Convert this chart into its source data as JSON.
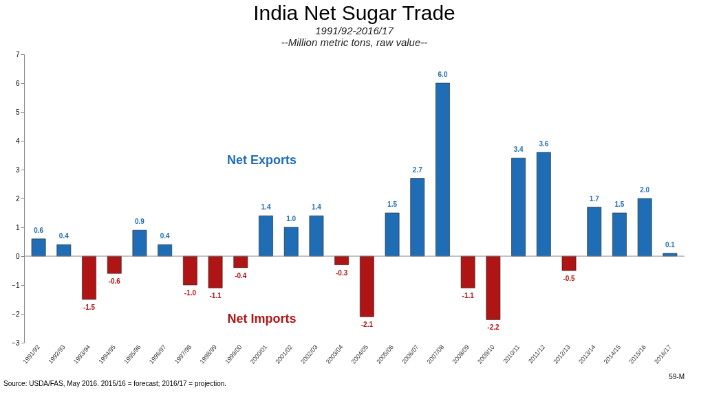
{
  "chart_data": {
    "type": "bar",
    "title": "India Net Sugar Trade",
    "subtitle": [
      "1991/92-2016/17",
      "--Million metric tons, raw value--"
    ],
    "categories": [
      "1991/92",
      "1992/93",
      "1993/94",
      "1994/95",
      "1995/96",
      "1996/97",
      "1997/98",
      "1998/99",
      "1999/00",
      "2000/01",
      "2001/02",
      "2002/03",
      "2003/04",
      "2004/05",
      "2005/06",
      "2006/07",
      "2007/08",
      "2008/09",
      "2009/10",
      "2010/11",
      "2011/12",
      "2012/13",
      "2013/14",
      "2014/15",
      "2015/16",
      "2016/17"
    ],
    "values": [
      0.6,
      0.4,
      -1.5,
      -0.6,
      0.9,
      0.4,
      -1.0,
      -1.1,
      -0.4,
      1.4,
      1.0,
      1.4,
      -0.3,
      -2.1,
      1.5,
      2.7,
      6.0,
      -1.1,
      -2.2,
      3.4,
      3.6,
      -0.5,
      1.7,
      1.5,
      2.0,
      0.1
    ],
    "colors": [
      "#1f6db5",
      "#1f6db5",
      "#b01515",
      "#b01515",
      "#1f6db5",
      "#1f6db5",
      "#b01515",
      "#b01515",
      "#b01515",
      "#1f6db5",
      "#1f6db5",
      "#1f6db5",
      "#b01515",
      "#b01515",
      "#1f6db5",
      "#1f6db5",
      "#1f6db5",
      "#b01515",
      "#b01515",
      "#1f6db5",
      "#1f6db5",
      "#b01515",
      "#1f6db5",
      "#1f6db5",
      "#1f6db5",
      "#1f6db5"
    ],
    "value_labels": [
      "0.6",
      "0.4",
      "-1.5",
      "-0.6",
      "0.9",
      "0.4",
      "-1.0",
      "-1.1",
      "-0.4",
      "1.4",
      "1.0",
      "1.4",
      "-0.3",
      "-2.1",
      "1.5",
      "2.7",
      "6.0",
      "-1.1",
      "-2.2",
      "3.4",
      "3.6",
      "-0.5",
      "1.7",
      "1.5",
      "2.0",
      "0.1"
    ],
    "ylim": [
      -3,
      7
    ],
    "yticks": [
      -3,
      -2,
      -1,
      0,
      1,
      2,
      3,
      4,
      5,
      6,
      7
    ],
    "annotations": [
      "Net Exports",
      "Net Imports",
      "Source:  USDA/FAS, May 2016.  2015/16 = forecast;  2016/17 = projection.",
      "59-M"
    ]
  }
}
